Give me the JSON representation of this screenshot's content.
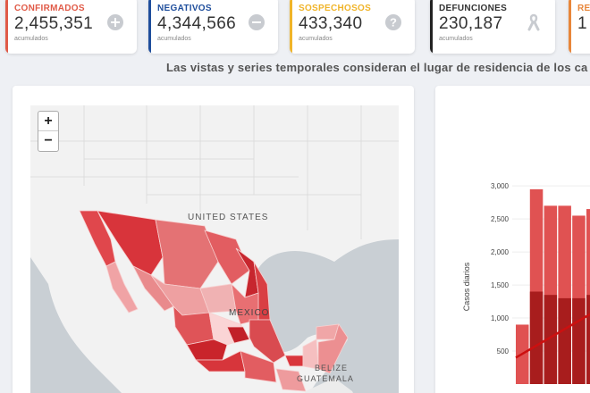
{
  "cards": [
    {
      "label": "CONFIRMADOS",
      "value": "2,455,351",
      "sub": "acumulados",
      "color": "#e05a47",
      "icon": "plus-circle-icon"
    },
    {
      "label": "NEGATIVOS",
      "value": "4,344,566",
      "sub": "acumulados",
      "color": "#1f4e9c",
      "icon": "minus-circle-icon"
    },
    {
      "label": "SOSPECHOSOS",
      "value": "433,340",
      "sub": "acumulados",
      "color": "#f0b429",
      "icon": "question-circle-icon"
    },
    {
      "label": "DEFUNCIONES",
      "value": "230,187",
      "sub": "acumulados",
      "color": "#222222",
      "icon": "ribbon-icon"
    },
    {
      "label": "RE",
      "value": "1",
      "sub": "",
      "color": "#e8863a",
      "icon": ""
    }
  ],
  "notice": "Las vistas y series temporales consideran el lugar de residencia de los ca",
  "map": {
    "zoom_in": "+",
    "zoom_out": "−",
    "labels": {
      "usa": "UNITED STATES",
      "mexico": "MEXICO",
      "belize": "BELIZE",
      "guatemala": "GUATEMALA"
    },
    "land_color": "#f2f2f2",
    "water_color": "#c9cfd4"
  },
  "chart_data": {
    "type": "bar",
    "ylabel": "Casos diarios",
    "yticks": [
      "3,000",
      "2,500",
      "2,000",
      "1,500",
      "1,000",
      "500"
    ],
    "values": [
      900,
      2950,
      2700,
      2700,
      2550,
      2650
    ],
    "values_dark": [
      0,
      1400,
      1350,
      1300,
      1300,
      1350
    ],
    "trend": [
      400,
      1150
    ],
    "color_light": "#e05252",
    "color_dark": "#a81d1d",
    "ylim": [
      0,
      3300
    ]
  }
}
